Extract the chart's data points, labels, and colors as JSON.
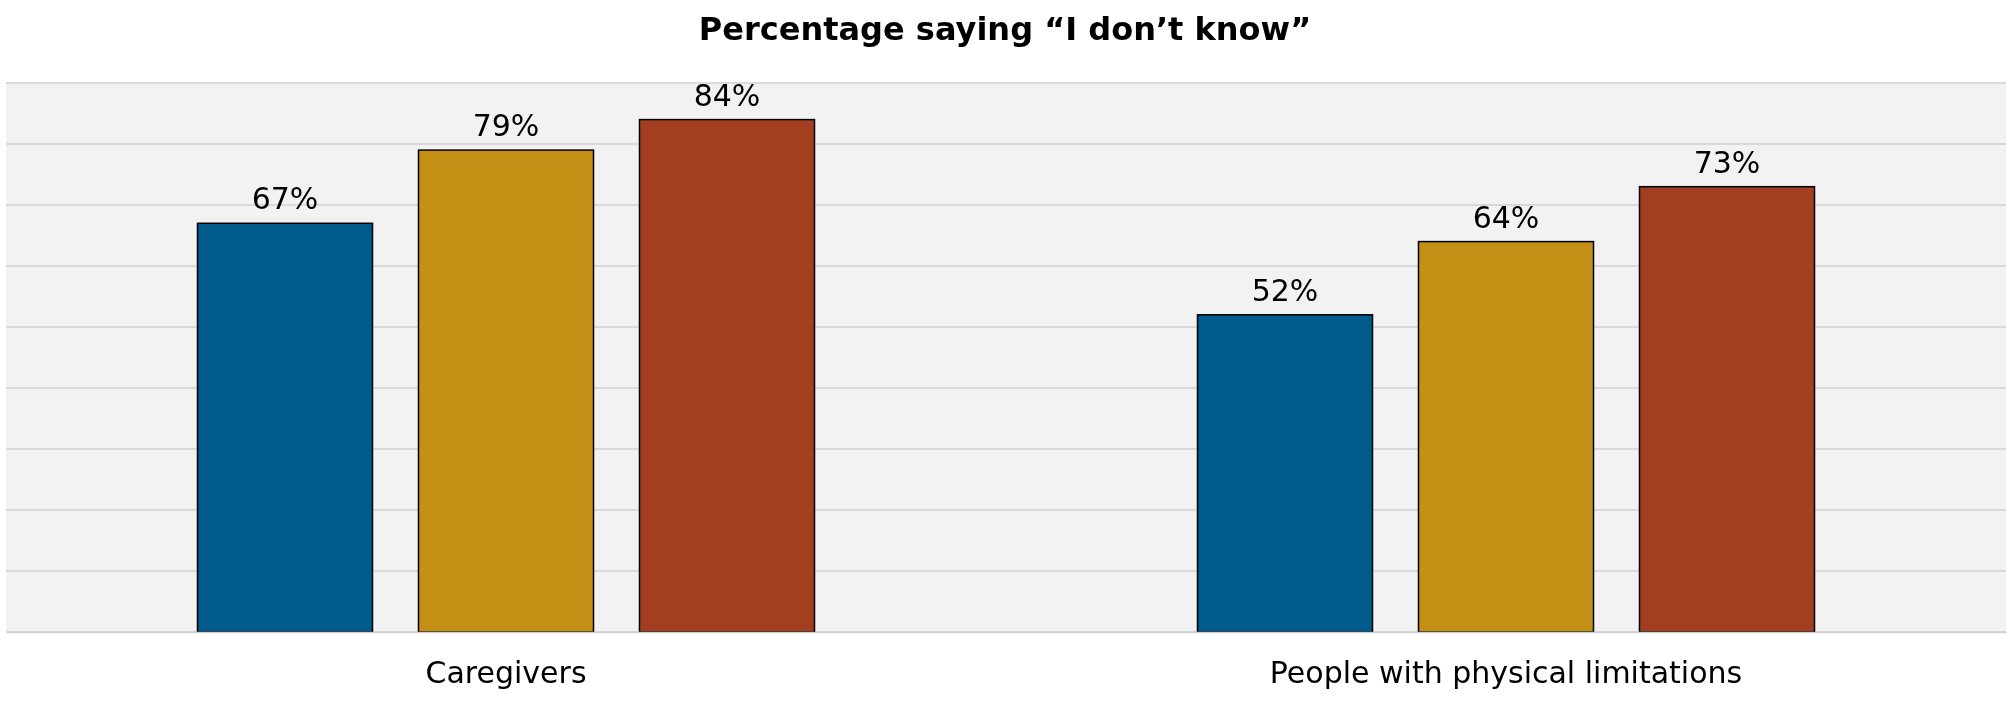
{
  "chart_data": {
    "type": "bar",
    "title": "Percentage saying “I don’t know”",
    "categories": [
      "Caregivers",
      "People with physical limitations"
    ],
    "series": [
      {
        "color": "#005a8c",
        "values": [
          67,
          52
        ],
        "value_labels": [
          "67%",
          "52%"
        ]
      },
      {
        "color": "#c49016",
        "values": [
          79,
          64
        ],
        "value_labels": [
          "79%",
          "64%"
        ]
      },
      {
        "color": "#a33f20",
        "values": [
          84,
          73
        ],
        "value_labels": [
          "84%",
          "73%"
        ]
      }
    ],
    "ylim": [
      0,
      90
    ],
    "yticks": [
      {
        "value": 0,
        "label": null
      },
      {
        "value": 10,
        "label": null
      },
      {
        "value": 20,
        "label": null
      },
      {
        "value": 30,
        "label": null
      },
      {
        "value": 40,
        "label": null
      },
      {
        "value": 50,
        "label": null
      },
      {
        "value": 60,
        "label": null
      },
      {
        "value": 70,
        "label": null
      },
      {
        "value": 80,
        "label": null
      },
      {
        "value": 90,
        "label": null
      }
    ],
    "grid": "y",
    "tick_labels": "x"
  }
}
